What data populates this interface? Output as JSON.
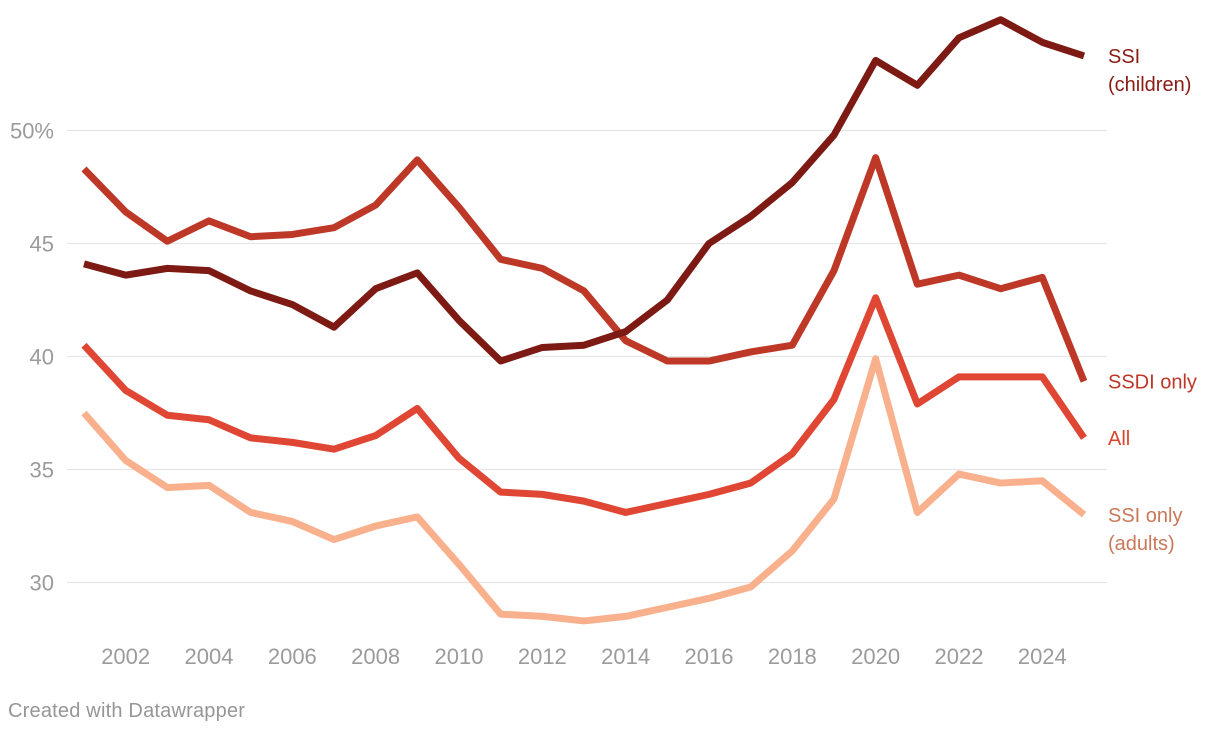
{
  "chart_data": {
    "type": "line",
    "x": [
      2001,
      2002,
      2003,
      2004,
      2005,
      2006,
      2007,
      2008,
      2009,
      2010,
      2011,
      2012,
      2013,
      2014,
      2015,
      2016,
      2017,
      2018,
      2019,
      2020,
      2021,
      2022,
      2023,
      2024,
      2025
    ],
    "series": [
      {
        "name": "SSI (children)",
        "label_lines": [
          "SSI",
          "(children)"
        ],
        "color": "#7d1a13",
        "label_color": "#8a1a13",
        "z": 4,
        "values": [
          44.1,
          43.6,
          43.9,
          43.8,
          42.9,
          42.3,
          41.3,
          43.0,
          43.7,
          41.6,
          39.8,
          40.4,
          40.5,
          41.1,
          42.5,
          45.0,
          46.2,
          47.7,
          49.8,
          53.1,
          52.0,
          54.1,
          54.9,
          53.9,
          53.3
        ]
      },
      {
        "name": "SSDI only",
        "label_lines": [
          "SSDI only"
        ],
        "color": "#bd3827",
        "label_color": "#bd3827",
        "z": 1,
        "values": [
          48.3,
          46.4,
          45.1,
          46.0,
          45.3,
          45.4,
          45.7,
          46.7,
          48.7,
          46.6,
          44.3,
          43.9,
          42.9,
          40.7,
          39.8,
          39.8,
          40.2,
          40.5,
          43.8,
          48.8,
          43.2,
          43.6,
          43.0,
          43.5,
          38.9
        ]
      },
      {
        "name": "All",
        "label_lines": [
          "All"
        ],
        "color": "#e04634",
        "label_color": "#d9452c",
        "z": 2,
        "values": [
          40.5,
          38.5,
          37.4,
          37.2,
          36.4,
          36.2,
          35.9,
          36.5,
          37.7,
          35.5,
          34.0,
          33.9,
          33.6,
          33.1,
          33.5,
          33.9,
          34.4,
          35.7,
          38.1,
          42.6,
          37.9,
          39.1,
          39.1,
          39.1,
          36.4
        ]
      },
      {
        "name": "SSI only (adults)",
        "label_lines": [
          "SSI only",
          "(adults)"
        ],
        "color": "#f9b08c",
        "label_color": "#c9785a",
        "z": 3,
        "values": [
          37.5,
          35.4,
          34.2,
          34.3,
          33.1,
          32.7,
          31.9,
          32.5,
          32.9,
          30.8,
          28.6,
          28.5,
          28.3,
          28.5,
          28.9,
          29.3,
          29.8,
          31.4,
          33.7,
          39.9,
          33.1,
          34.8,
          34.4,
          34.5,
          33.0
        ]
      }
    ],
    "y_axis": {
      "ticks": [
        {
          "value": 50,
          "label": "50%"
        },
        {
          "value": 45,
          "label": "45"
        },
        {
          "value": 40,
          "label": "40"
        },
        {
          "value": 35,
          "label": "35"
        },
        {
          "value": 30,
          "label": "30"
        }
      ],
      "range_shown": [
        28,
        56
      ]
    },
    "x_axis": {
      "tick_years": [
        2002,
        2004,
        2006,
        2008,
        2010,
        2012,
        2014,
        2016,
        2018,
        2020,
        2022,
        2024
      ]
    },
    "grid": true,
    "legend_position": "right-line-labels",
    "title": "",
    "xlabel": "",
    "ylabel": ""
  },
  "style": {
    "grid_color": "#e6e6e6",
    "axis_text_color": "#9b9b9b",
    "background": "#ffffff"
  },
  "footer": {
    "credit": "Created with Datawrapper"
  }
}
